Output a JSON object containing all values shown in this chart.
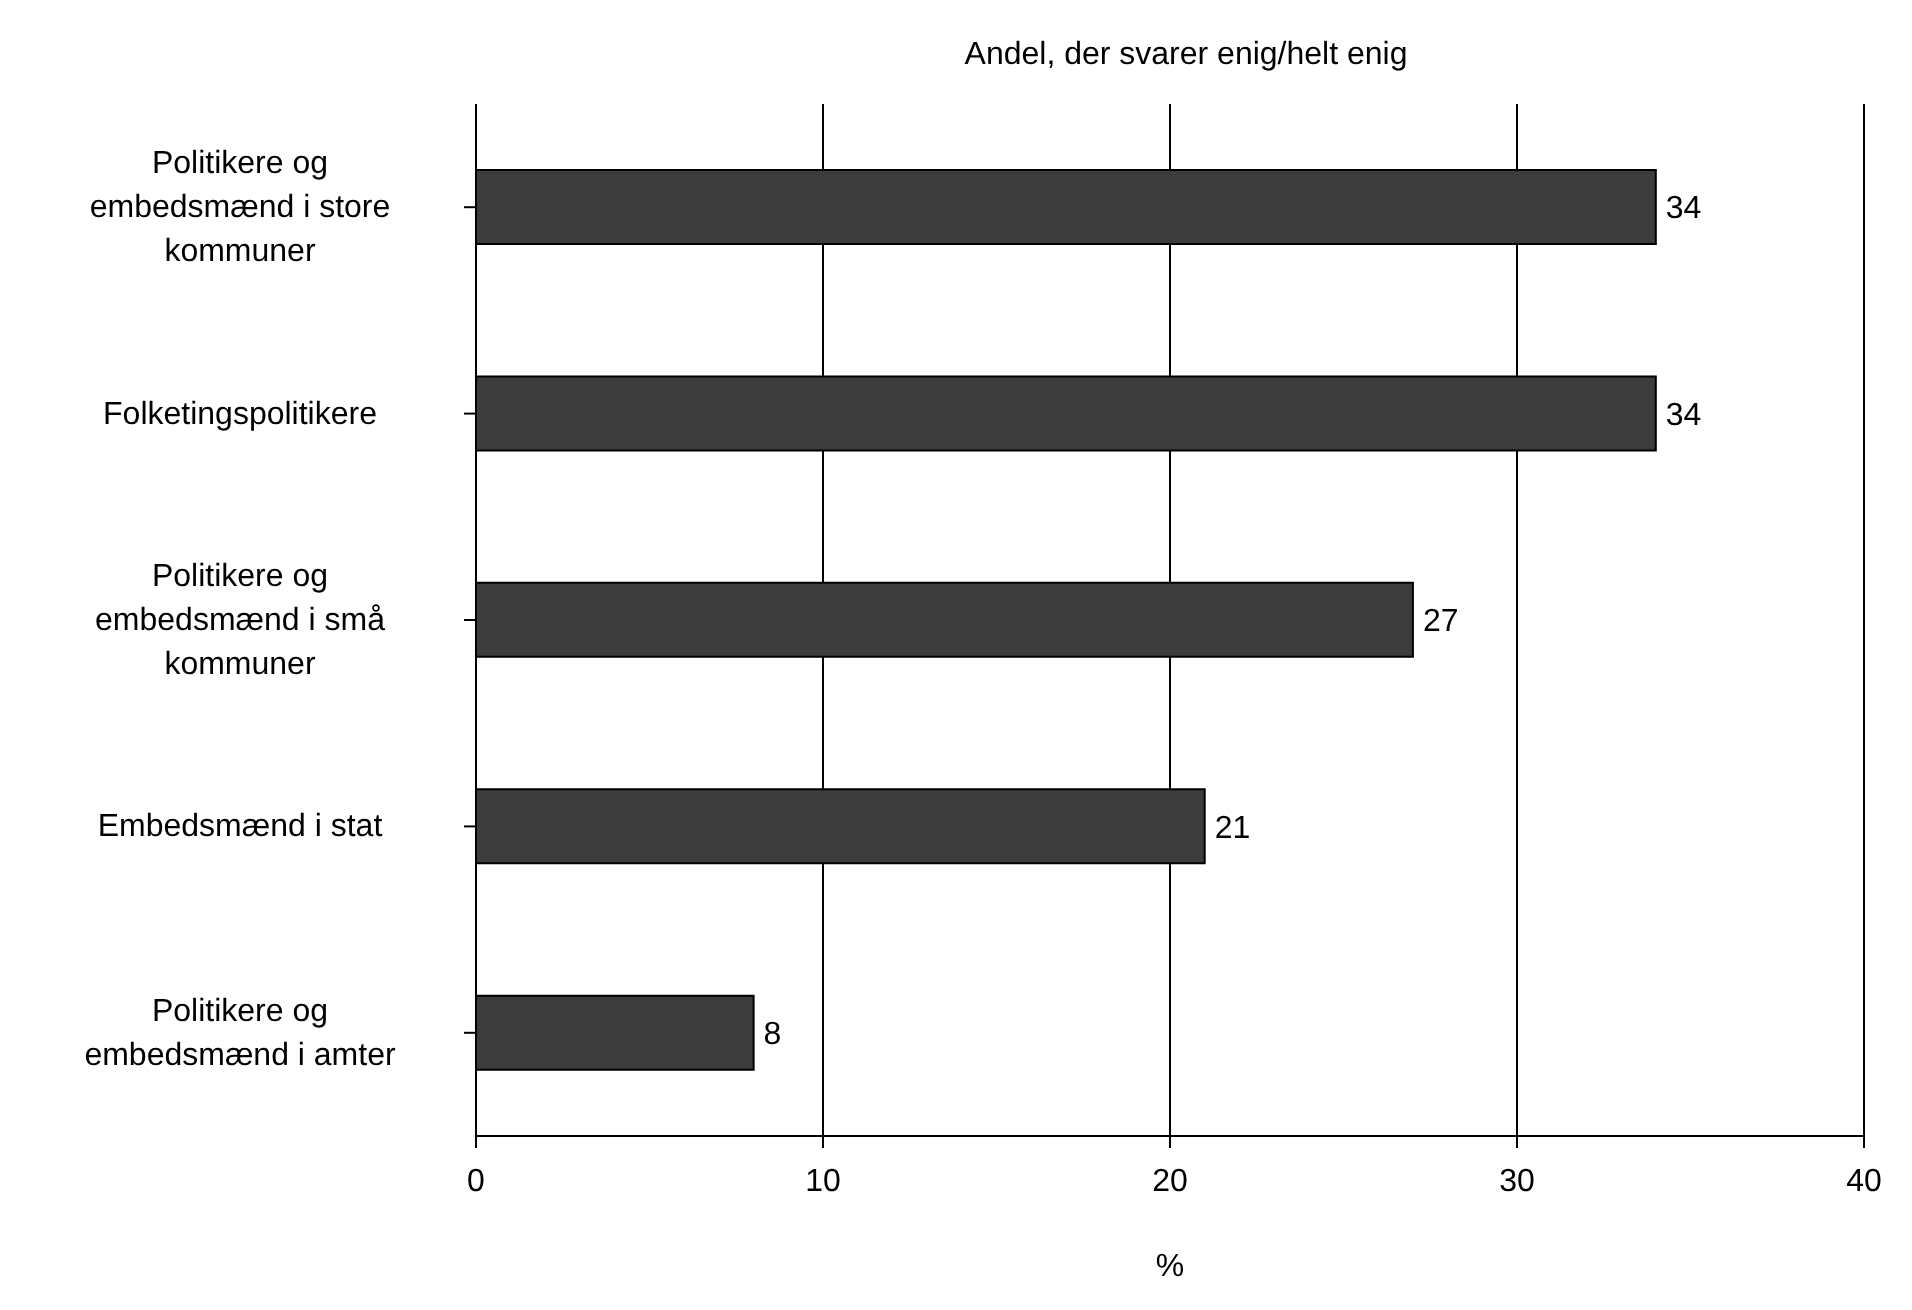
{
  "chart_data": {
    "type": "bar",
    "orientation": "horizontal",
    "title": "Andel, der svarer enig/helt enig",
    "xlabel": "%",
    "categories": [
      "Politikere og embedsmænd i store kommuner",
      "Folketingspolitikere",
      "Politikere og embedsmænd i små kommuner",
      "Embedsmænd i stat",
      "Politikere og embedsmænd i amter"
    ],
    "values": [
      34,
      34,
      27,
      21,
      8
    ],
    "color": "#3c3c3c",
    "xlim": [
      0,
      40
    ],
    "xticks": [
      0,
      10,
      20,
      30,
      40
    ],
    "grid": "x",
    "data_labels": true
  }
}
